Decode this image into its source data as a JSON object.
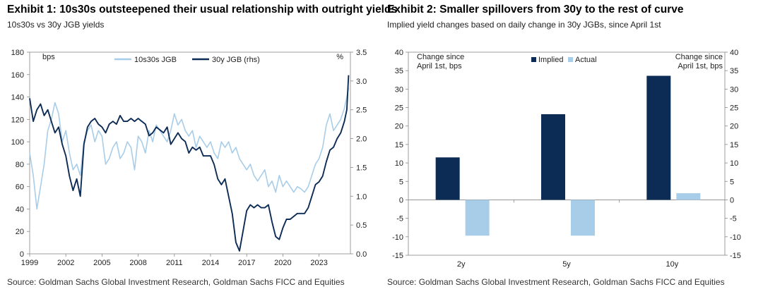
{
  "exhibit1": {
    "title": "Exhibit 1: 10s30s outsteepened their usual relationship with outright yields",
    "subtitle": "10s30s vs 30y JGB yields",
    "source": "Source: Goldman Sachs Global Investment Research, Goldman Sachs FICC and Equities",
    "chart_data": {
      "type": "line",
      "left_unit": "bps",
      "right_unit": "%",
      "ylim_left": [
        0,
        180
      ],
      "ylim_right": [
        0.0,
        3.5
      ],
      "yticks_left": [
        "0",
        "20",
        "40",
        "60",
        "80",
        "100",
        "120",
        "140",
        "160",
        "180"
      ],
      "yticks_right": [
        "0.0",
        "0.5",
        "1.0",
        "1.5",
        "2.0",
        "2.5",
        "3.0",
        "3.5"
      ],
      "xlim": [
        1999,
        2025.6
      ],
      "xticks": [
        "1999",
        "2002",
        "2005",
        "2008",
        "2011",
        "2014",
        "2017",
        "2020",
        "2023"
      ],
      "legend_position": "top",
      "series": [
        {
          "name": "10s30s JGB",
          "axis": "left",
          "color": "#a8cde9",
          "x": [
            1999.0,
            1999.3,
            1999.6,
            1999.9,
            2000.2,
            2000.5,
            2000.8,
            2001.1,
            2001.4,
            2001.7,
            2002.0,
            2002.3,
            2002.6,
            2002.9,
            2003.2,
            2003.5,
            2003.8,
            2004.1,
            2004.4,
            2004.7,
            2005.0,
            2005.3,
            2005.6,
            2005.9,
            2006.2,
            2006.5,
            2006.8,
            2007.1,
            2007.4,
            2007.7,
            2008.0,
            2008.3,
            2008.6,
            2008.9,
            2009.2,
            2009.5,
            2009.8,
            2010.1,
            2010.4,
            2010.7,
            2011.0,
            2011.3,
            2011.6,
            2011.9,
            2012.2,
            2012.5,
            2012.8,
            2013.1,
            2013.4,
            2013.7,
            2014.0,
            2014.3,
            2014.6,
            2014.9,
            2015.2,
            2015.5,
            2015.8,
            2016.1,
            2016.4,
            2016.7,
            2017.0,
            2017.3,
            2017.6,
            2017.9,
            2018.2,
            2018.5,
            2018.8,
            2019.1,
            2019.4,
            2019.7,
            2020.0,
            2020.3,
            2020.6,
            2020.9,
            2021.2,
            2021.5,
            2021.8,
            2022.1,
            2022.4,
            2022.7,
            2023.0,
            2023.3,
            2023.6,
            2023.9,
            2024.2,
            2024.5,
            2024.8,
            2025.1,
            2025.3,
            2025.45
          ],
          "values": [
            90,
            70,
            40,
            60,
            80,
            110,
            120,
            135,
            125,
            100,
            110,
            90,
            75,
            80,
            70,
            100,
            110,
            115,
            100,
            110,
            105,
            80,
            85,
            95,
            100,
            85,
            90,
            100,
            95,
            75,
            105,
            100,
            90,
            110,
            100,
            115,
            110,
            105,
            100,
            110,
            125,
            115,
            120,
            110,
            105,
            110,
            95,
            105,
            100,
            95,
            100,
            90,
            85,
            100,
            95,
            100,
            90,
            95,
            85,
            80,
            75,
            80,
            70,
            65,
            70,
            75,
            60,
            65,
            55,
            70,
            60,
            65,
            60,
            55,
            60,
            58,
            55,
            60,
            70,
            80,
            85,
            95,
            115,
            125,
            110,
            115,
            120,
            130,
            140,
            148
          ]
        },
        {
          "name": "30y JGB (rhs)",
          "axis": "right",
          "color": "#0c2c55",
          "x": [
            1999.0,
            1999.3,
            1999.6,
            1999.9,
            2000.2,
            2000.5,
            2000.8,
            2001.1,
            2001.4,
            2001.7,
            2002.0,
            2002.3,
            2002.6,
            2002.9,
            2003.2,
            2003.5,
            2003.8,
            2004.1,
            2004.4,
            2004.7,
            2005.0,
            2005.3,
            2005.6,
            2005.9,
            2006.2,
            2006.5,
            2006.8,
            2007.1,
            2007.4,
            2007.7,
            2008.0,
            2008.3,
            2008.6,
            2008.9,
            2009.2,
            2009.5,
            2009.8,
            2010.1,
            2010.4,
            2010.7,
            2011.0,
            2011.3,
            2011.6,
            2011.9,
            2012.2,
            2012.5,
            2012.8,
            2013.1,
            2013.4,
            2013.7,
            2014.0,
            2014.3,
            2014.6,
            2014.9,
            2015.2,
            2015.5,
            2015.8,
            2016.1,
            2016.4,
            2016.7,
            2017.0,
            2017.3,
            2017.6,
            2017.9,
            2018.2,
            2018.5,
            2018.8,
            2019.1,
            2019.4,
            2019.7,
            2020.0,
            2020.3,
            2020.6,
            2020.9,
            2021.2,
            2021.5,
            2021.8,
            2022.1,
            2022.4,
            2022.7,
            2023.0,
            2023.3,
            2023.6,
            2023.9,
            2024.2,
            2024.5,
            2024.8,
            2025.1,
            2025.3,
            2025.45
          ],
          "values": [
            2.7,
            2.3,
            2.5,
            2.6,
            2.4,
            2.5,
            2.3,
            2.1,
            2.2,
            1.9,
            1.7,
            1.35,
            1.1,
            1.3,
            1.0,
            1.9,
            2.2,
            2.3,
            2.35,
            2.25,
            2.2,
            2.1,
            2.25,
            2.3,
            2.25,
            2.4,
            2.3,
            2.3,
            2.35,
            2.3,
            2.35,
            2.3,
            2.25,
            2.05,
            2.1,
            2.2,
            2.15,
            2.1,
            2.2,
            1.9,
            2.0,
            2.1,
            2.0,
            1.95,
            1.75,
            1.85,
            1.8,
            1.85,
            1.7,
            1.7,
            1.7,
            1.55,
            1.3,
            1.2,
            1.3,
            1.0,
            0.7,
            0.2,
            0.05,
            0.4,
            0.75,
            0.85,
            0.8,
            0.85,
            0.8,
            0.8,
            0.85,
            0.55,
            0.3,
            0.25,
            0.45,
            0.6,
            0.6,
            0.65,
            0.7,
            0.7,
            0.7,
            0.8,
            1.0,
            1.2,
            1.25,
            1.35,
            1.6,
            1.8,
            1.85,
            2.0,
            2.1,
            2.3,
            2.5,
            3.1
          ]
        }
      ]
    }
  },
  "exhibit2": {
    "title": "Exhibit 2: Smaller spillovers from 30y to the rest of curve",
    "subtitle": "Implied yield changes based on daily change in 30y JGBs, since April 1st",
    "source": "Source: Goldman Sachs Global Investment Research, Goldman Sachs FICC and Equities",
    "chart_data": {
      "type": "bar",
      "categories": [
        "2y",
        "5y",
        "10y"
      ],
      "series": [
        {
          "name": "Implied",
          "color": "#0c2c55",
          "values": [
            11.5,
            23.2,
            33.6
          ]
        },
        {
          "name": "Actual",
          "color": "#a8cde9",
          "values": [
            -9.7,
            -9.7,
            1.8
          ]
        }
      ],
      "ylim": [
        -15,
        40
      ],
      "yticks_left": [
        "-15",
        "-10",
        "-5",
        "0",
        "5",
        "10",
        "15",
        "20",
        "25",
        "30",
        "35",
        "40"
      ],
      "yticks_right": [
        "-15",
        "-10",
        "-5",
        "0",
        "5",
        "10",
        "15",
        "20",
        "25",
        "30",
        "35",
        "40"
      ],
      "left_axis_label_line1": "Change since",
      "left_axis_label_line2": "April 1st, bps",
      "right_axis_label_line1": "Change since",
      "right_axis_label_line2": "April 1st, bps",
      "legend_position": "top-center"
    }
  }
}
